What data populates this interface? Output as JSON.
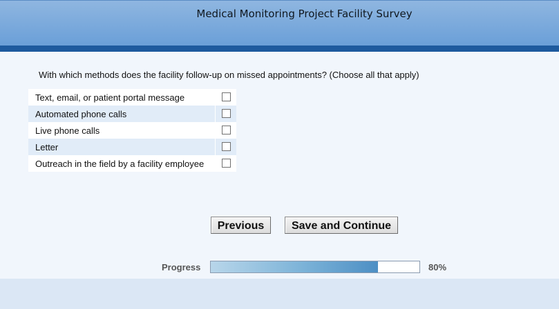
{
  "header": {
    "title": "Medical Monitoring Project Facility Survey"
  },
  "question": {
    "text": "With which methods does the facility follow-up on missed appointments? (Choose all that apply)"
  },
  "options": [
    {
      "label": "Text, email, or patient portal message",
      "checked": false
    },
    {
      "label": "Automated phone calls",
      "checked": false
    },
    {
      "label": "Live phone calls",
      "checked": false
    },
    {
      "label": "Letter",
      "checked": false
    },
    {
      "label": "Outreach in the field by a facility employee",
      "checked": false
    }
  ],
  "buttons": {
    "previous": "Previous",
    "save_continue": "Save and Continue"
  },
  "progress": {
    "label": "Progress",
    "value": 0.8,
    "percent_text": "80%"
  },
  "colors": {
    "header_top": "#8fb6e0",
    "header_bottom": "#6a9fd8",
    "header_rule": "#1d5a9e",
    "page_bg": "#f1f6fc",
    "row_alt": "#e1ecf8",
    "progress_fill": "#4d8fc4"
  }
}
